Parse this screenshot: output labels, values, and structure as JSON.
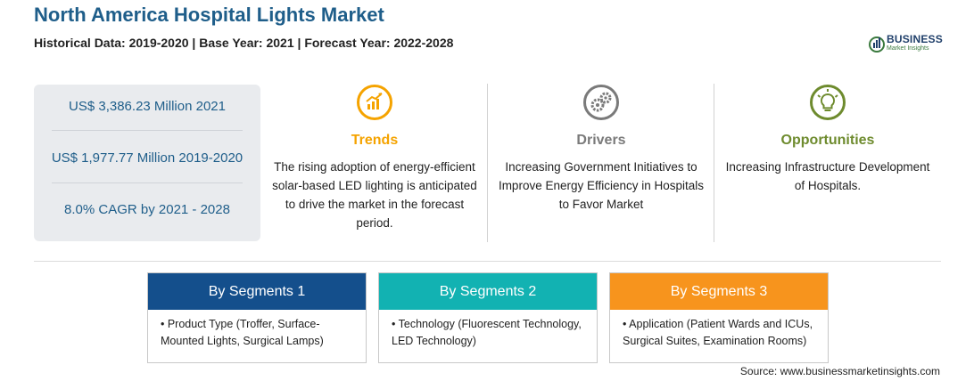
{
  "header": {
    "title": "North America Hospital Lights Market",
    "subtitle": "Historical Data: 2019-2020 | Base Year: 2021 | Forecast Year: 2022-2028"
  },
  "logo": {
    "name": "BUSINESS",
    "tagline": "Market Insights"
  },
  "stats": [
    "US$ 3,386.23 Million 2021",
    "US$ 1,977.77 Million 2019-2020",
    "8.0% CAGR by 2021 - 2028"
  ],
  "columns": [
    {
      "heading": "Trends",
      "color": "#f5a300",
      "icon": "trend-chart-icon",
      "text": "The rising adoption of energy-efficient solar-based LED lighting is anticipated to drive the market in the forecast period."
    },
    {
      "heading": "Drivers",
      "color": "#7a7a7a",
      "icon": "gears-icon",
      "text": "Increasing Government Initiatives to Improve Energy Efficiency in Hospitals to Favor Market"
    },
    {
      "heading": "Opportunities",
      "color": "#6e8b2e",
      "icon": "lightbulb-icon",
      "text": "Increasing Infrastructure Development of Hospitals."
    }
  ],
  "segments": [
    {
      "title": "By Segments 1",
      "color": "#144f8c",
      "text": "• Product Type (Troffer, Surface-Mounted Lights, Surgical Lamps)"
    },
    {
      "title": "By Segments 2",
      "color": "#12b2b2",
      "text": "• Technology (Fluorescent Technology, LED Technology)"
    },
    {
      "title": "By Segments 3",
      "color": "#f7941d",
      "text": "• Application (Patient Wards and ICUs, Surgical Suites, Examination Rooms)"
    }
  ],
  "source": "Source: www.businessmarketinsights.com"
}
